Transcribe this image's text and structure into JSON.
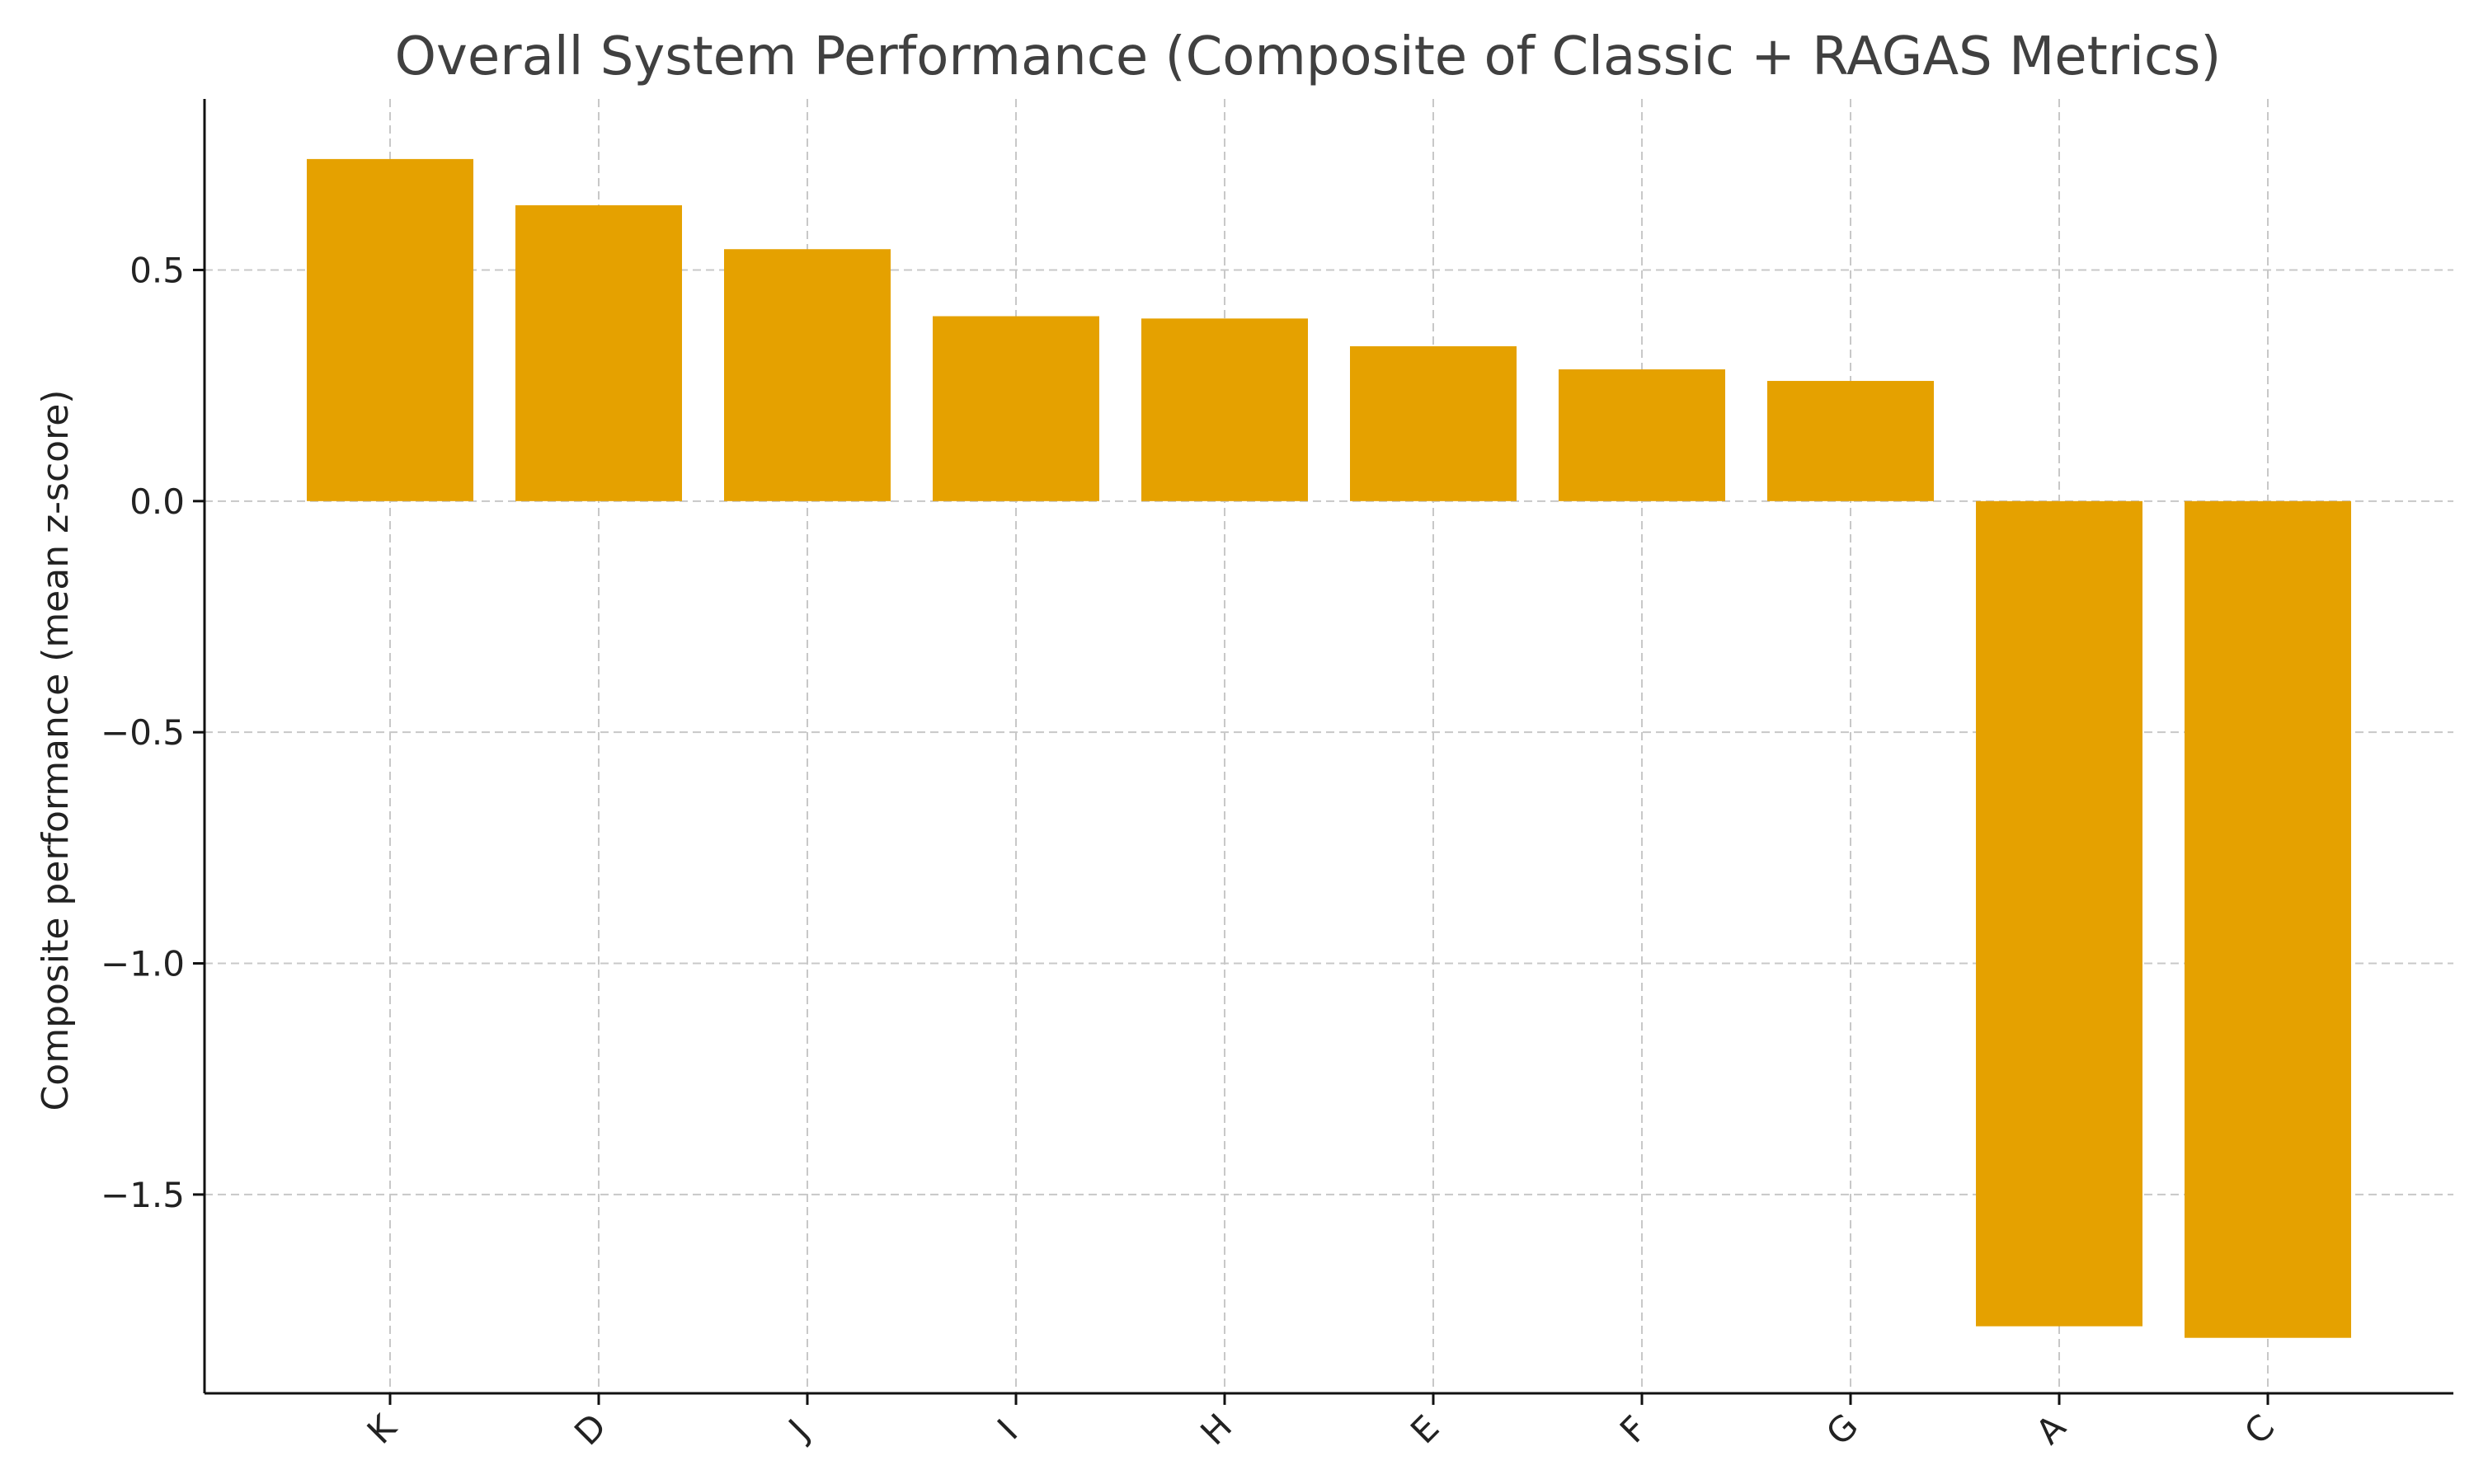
{
  "chart_data": {
    "type": "bar",
    "title": "Overall System Performance (Composite of Classic + RAGAS Metrics)",
    "xlabel": "",
    "ylabel": "Composite performance (mean z-score)",
    "categories": [
      "K",
      "D",
      "J",
      "I",
      "H",
      "E",
      "F",
      "G",
      "A",
      "C"
    ],
    "values": [
      0.74,
      0.64,
      0.545,
      0.4,
      0.395,
      0.335,
      0.285,
      0.26,
      -1.785,
      -1.81
    ],
    "ylim": [
      -1.93,
      0.87
    ],
    "yticks": [
      0.5,
      0.0,
      -0.5,
      -1.0,
      -1.5
    ],
    "ytick_labels": [
      "0.5",
      "0.0",
      "−0.5",
      "−1.0",
      "−1.5"
    ],
    "bar_color": "#E5A100",
    "grid": true,
    "legend": "none"
  }
}
